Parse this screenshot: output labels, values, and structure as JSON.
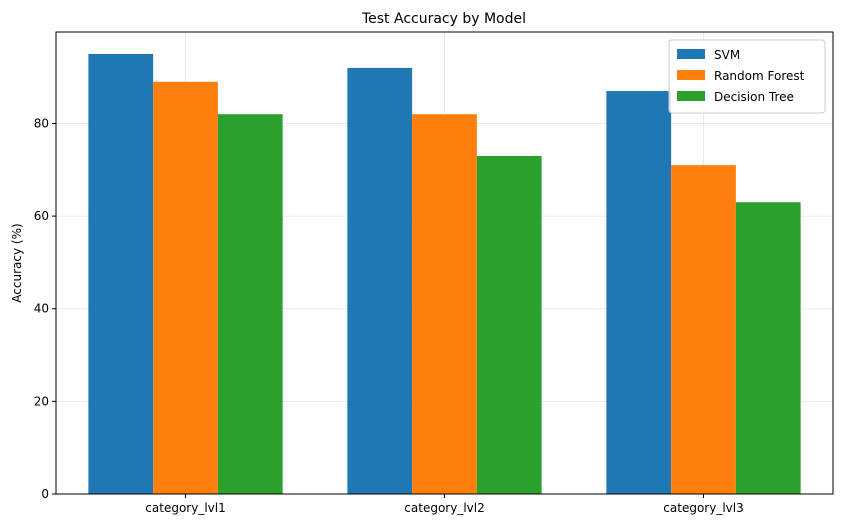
{
  "chart_data": {
    "type": "bar",
    "title": "Test Accuracy by Model",
    "xlabel": "",
    "ylabel": "Accuracy (%)",
    "categories": [
      "category_lvl1",
      "category_lvl2",
      "category_lvl3"
    ],
    "series": [
      {
        "name": "SVM",
        "color": "#1f77b4",
        "values": [
          95,
          92,
          87
        ]
      },
      {
        "name": "Random Forest",
        "color": "#ff7f0e",
        "values": [
          89,
          82,
          71
        ]
      },
      {
        "name": "Decision Tree",
        "color": "#2ca02c",
        "values": [
          82,
          73,
          63
        ]
      }
    ],
    "ylim": [
      0,
      99.75
    ],
    "yticks": [
      0,
      20,
      40,
      60,
      80
    ],
    "grid": true,
    "legend_position": "top-right"
  }
}
